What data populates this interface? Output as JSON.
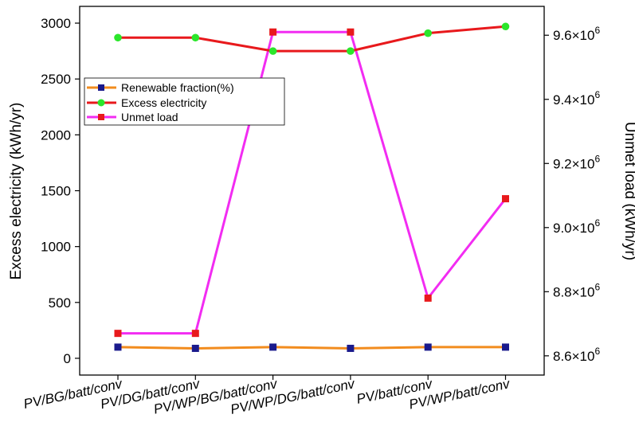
{
  "chart_data": {
    "type": "line",
    "categories": [
      "PV/BG/batt/conv",
      "PV/DG/batt/conv",
      "PV/WP/BG/batt/conv",
      "PV/WP/DG/batt/conv",
      "PV/batt/conv",
      "PV/WP/batt/conv"
    ],
    "left_axis": {
      "label": "Excess electricity (kWh/yr)",
      "ylim": [
        -150,
        3150
      ],
      "ticks": [
        0,
        500,
        1000,
        1500,
        2000,
        2500,
        3000
      ],
      "tick_labels": [
        "0",
        "500",
        "1000",
        "1500",
        "2000",
        "2500",
        "3000"
      ]
    },
    "right_axis": {
      "label": "Unmet load (kWh/yr)",
      "ylim": [
        8.54,
        9.69
      ],
      "ticks": [
        8.6,
        8.8,
        9.0,
        9.2,
        9.4,
        9.6
      ],
      "tick_labels": [
        {
          "mantissa": "8.6×10",
          "exp": "6"
        },
        {
          "mantissa": "8.8×10",
          "exp": "6"
        },
        {
          "mantissa": "9.0×10",
          "exp": "6"
        },
        {
          "mantissa": "9.2×10",
          "exp": "6"
        },
        {
          "mantissa": "9.4×10",
          "exp": "6"
        },
        {
          "mantissa": "9.6×10",
          "exp": "6"
        }
      ]
    },
    "series": [
      {
        "name": "Renewable fraction(%)",
        "axis": "left",
        "line_color": "#F28C1E",
        "marker": "square",
        "marker_color": "#1A1A8C",
        "values": [
          100,
          89,
          100,
          89,
          100,
          100
        ]
      },
      {
        "name": "Excess electricity",
        "axis": "left",
        "line_color": "#E8191C",
        "marker": "circle",
        "marker_color": "#2BE62B",
        "values": [
          2870,
          2870,
          2750,
          2750,
          2910,
          2970
        ],
        "marker_values": [
          2870,
          2870,
          2750,
          2750,
          2910,
          2970
        ]
      },
      {
        "name": "Unmet load",
        "axis": "right",
        "line_color": "#F22CF2",
        "marker": "square",
        "marker_color": "#E8191C",
        "values": [
          8.67,
          8.67,
          9.61,
          9.61,
          8.78,
          9.09
        ]
      }
    ],
    "legend_position": "upper-left",
    "grid": false
  }
}
